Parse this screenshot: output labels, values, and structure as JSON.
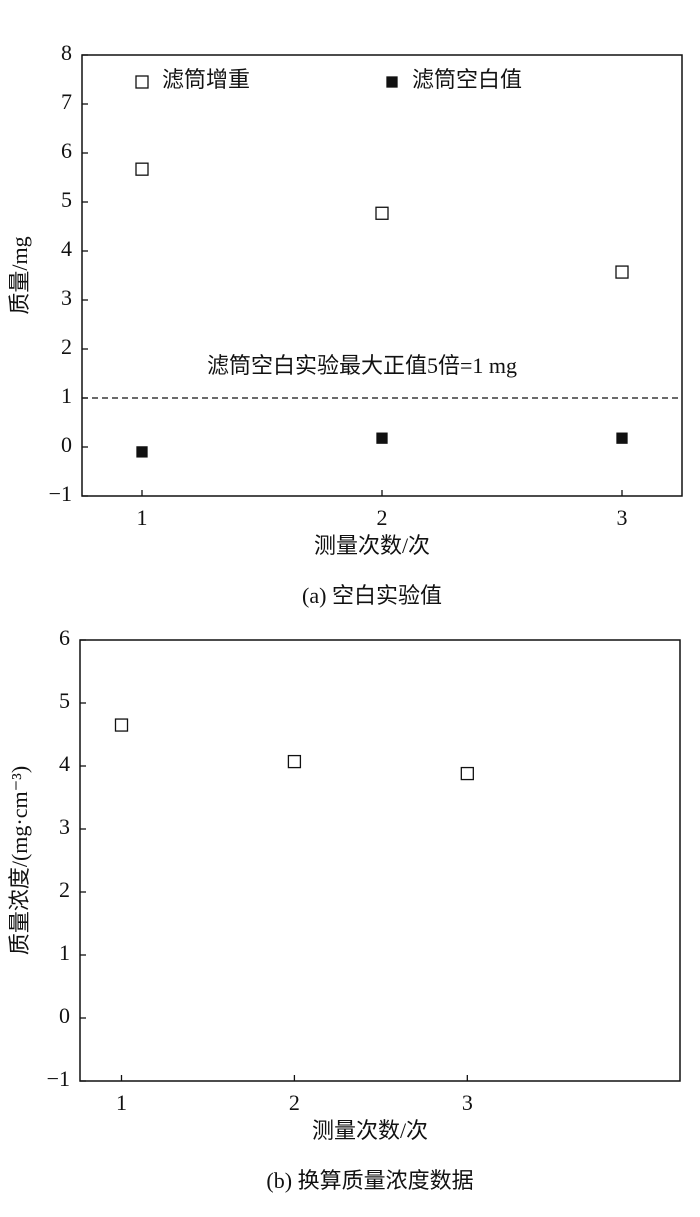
{
  "chart_data": [
    {
      "type": "scatter",
      "xlabel": "测量次数/次",
      "ylabel": "质量/mg",
      "caption": "(a) 空白实验值",
      "x": [
        1,
        2,
        3
      ],
      "xlim": [
        0.75,
        3.25
      ],
      "xticks": [
        1,
        2,
        3
      ],
      "ylim": [
        -1,
        8
      ],
      "yticks": [
        {
          "value": -1,
          "label": "−1"
        },
        0,
        1,
        2,
        3,
        4,
        5,
        6,
        7,
        8
      ],
      "legend": "top",
      "series": [
        {
          "name": "滤筒增重",
          "marker": "open",
          "color": "#111111",
          "values": [
            5.67,
            4.77,
            3.57
          ]
        },
        {
          "name": "滤筒空白值",
          "marker": "filled",
          "color": "#111111",
          "values": [
            -0.1,
            0.18,
            0.18
          ]
        }
      ],
      "hlines": [
        {
          "y": 1,
          "style": "dashed",
          "label": "滤筒空白实验最大正值5倍=1 mg"
        }
      ]
    },
    {
      "type": "scatter",
      "xlabel": "测量次数/次",
      "ylabel": "质量浓度/(mg·cm⁻³)",
      "caption": "(b) 换算质量浓度数据",
      "x": [
        1,
        2,
        3
      ],
      "xlim": [
        0.76,
        4.23
      ],
      "xticks": [
        1,
        2,
        3
      ],
      "ylim": [
        -1,
        6
      ],
      "yticks": [
        {
          "value": -1,
          "label": "−1"
        },
        0,
        1,
        2,
        3,
        4,
        5,
        6
      ],
      "series": [
        {
          "marker": "open",
          "color": "#111111",
          "values": [
            4.65,
            4.07,
            3.88
          ]
        }
      ]
    }
  ]
}
